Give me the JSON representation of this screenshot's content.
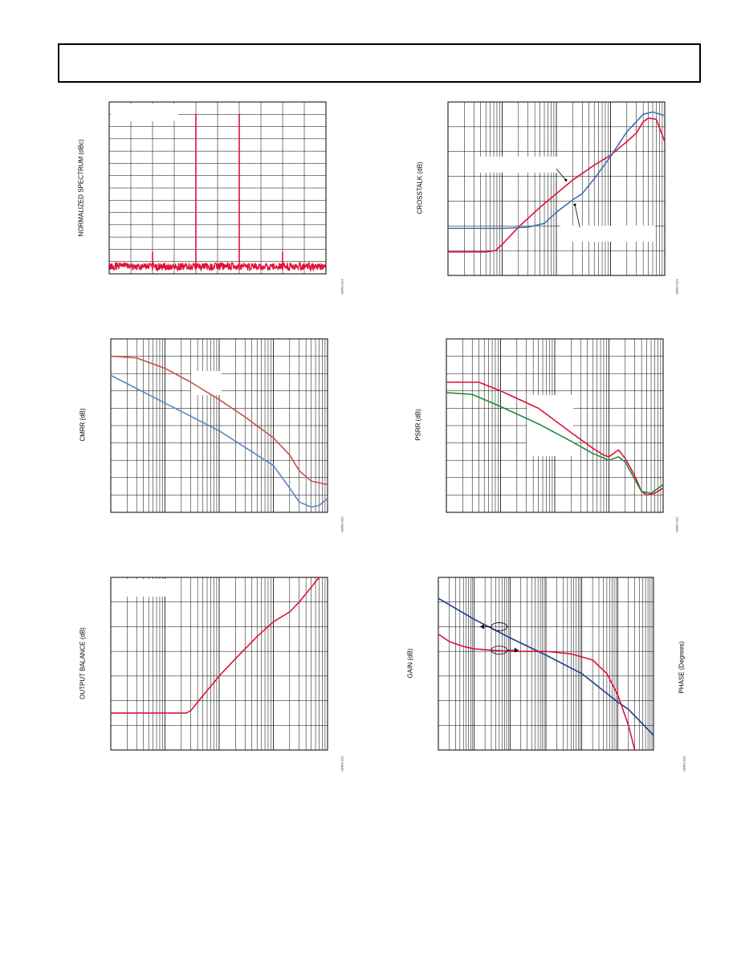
{
  "colors": {
    "red": "#e0103a",
    "blue": "#3f6fb2",
    "navy": "#1b3f8b",
    "green": "#1f8a3a",
    "brick": "#c8504a",
    "steel": "#5b86c4"
  },
  "chart_data": [
    {
      "id": "spectrum",
      "type": "line",
      "ylabel": "NORMALIZED SPECTRUM (dBc)",
      "figure_id": "08452-023",
      "x_scale": "linear",
      "xlim": [
        0,
        10
      ],
      "ylim": [
        -130,
        10
      ],
      "x_gridlines": [
        1,
        2,
        3,
        4,
        5,
        6,
        7,
        8,
        9
      ],
      "y_gridlines": [
        0,
        -10,
        -20,
        -30,
        -40,
        -50,
        -60,
        -70,
        -80,
        -90,
        -100,
        -110,
        -120
      ],
      "noise_floor": [
        -127,
        -121
      ],
      "series": [
        {
          "color": "red",
          "spikes": [
            {
              "x": 2.0,
              "y": -112
            },
            {
              "x": 4.0,
              "y": 0
            },
            {
              "x": 6.0,
              "y": 0
            },
            {
              "x": 8.0,
              "y": -112
            }
          ]
        }
      ],
      "legend_placeholder": "top-left"
    },
    {
      "id": "crosstalk",
      "type": "line",
      "ylabel": "CROSSTALK (dB)",
      "figure_id": "08452-029",
      "x_scale": "log",
      "xlim": [
        0.1,
        1000
      ],
      "ylim": [
        -140,
        0
      ],
      "y_gridlines": [
        -20,
        -40,
        -60,
        -80,
        -100,
        -120
      ],
      "series": [
        {
          "color": "red",
          "points": [
            [
              0.1,
              -121
            ],
            [
              0.5,
              -121
            ],
            [
              0.75,
              -120
            ],
            [
              1,
              -115
            ],
            [
              2,
              -101
            ],
            [
              5,
              -85
            ],
            [
              10,
              -74
            ],
            [
              20,
              -63
            ],
            [
              50,
              -51
            ],
            [
              100,
              -43
            ],
            [
              200,
              -32
            ],
            [
              300,
              -25
            ],
            [
              400,
              -16
            ],
            [
              500,
              -13
            ],
            [
              700,
              -14
            ],
            [
              1000,
              -32
            ]
          ]
        },
        {
          "color": "blue",
          "points": [
            [
              0.1,
              -102
            ],
            [
              1,
              -102
            ],
            [
              3,
              -101
            ],
            [
              6,
              -98
            ],
            [
              10,
              -89
            ],
            [
              20,
              -79
            ],
            [
              30,
              -74
            ],
            [
              50,
              -62
            ],
            [
              100,
              -44
            ],
            [
              200,
              -24
            ],
            [
              400,
              -10
            ],
            [
              600,
              -8
            ],
            [
              1000,
              -11
            ]
          ]
        }
      ],
      "annotations": [
        {
          "label_slot": "upper",
          "arrow_to": [
            15,
            -63
          ]
        },
        {
          "label_slot": "lower",
          "arrow_to": [
            22,
            -83
          ]
        }
      ]
    },
    {
      "id": "cmrr",
      "type": "line",
      "ylabel": "CMRR (dB)",
      "figure_id": "08452-030",
      "x_scale": "log",
      "xlim": [
        0.1,
        1000
      ],
      "ylim": [
        -100,
        0
      ],
      "y_gridlines": [
        -10,
        -20,
        -30,
        -40,
        -50,
        -60,
        -70,
        -80,
        -90
      ],
      "series": [
        {
          "color": "brick",
          "points": [
            [
              0.1,
              -10
            ],
            [
              0.3,
              -11
            ],
            [
              1,
              -17
            ],
            [
              3,
              -25
            ],
            [
              10,
              -35
            ],
            [
              30,
              -45
            ],
            [
              100,
              -57
            ],
            [
              200,
              -67
            ],
            [
              300,
              -76
            ],
            [
              500,
              -82
            ],
            [
              1000,
              -84
            ]
          ]
        },
        {
          "color": "steel",
          "points": [
            [
              0.1,
              -21
            ],
            [
              1,
              -37
            ],
            [
              10,
              -53
            ],
            [
              100,
              -73
            ],
            [
              200,
              -86
            ],
            [
              300,
              -94
            ],
            [
              500,
              -97
            ],
            [
              700,
              -96
            ],
            [
              1000,
              -92
            ]
          ]
        }
      ],
      "legend_placeholder": "upper-center"
    },
    {
      "id": "psrr",
      "type": "line",
      "ylabel": "PSRR (dB)",
      "figure_id": "08452-031",
      "x_scale": "log",
      "xlim": [
        0.1,
        1000
      ],
      "ylim": [
        -100,
        0
      ],
      "y_gridlines": [
        -10,
        -20,
        -30,
        -40,
        -50,
        -60,
        -70,
        -80,
        -90
      ],
      "series": [
        {
          "color": "red",
          "points": [
            [
              0.1,
              -25
            ],
            [
              0.4,
              -25
            ],
            [
              1,
              -30
            ],
            [
              5,
              -40
            ],
            [
              20,
              -54
            ],
            [
              50,
              -63
            ],
            [
              80,
              -67
            ],
            [
              100,
              -68
            ],
            [
              150,
              -64
            ],
            [
              200,
              -69
            ],
            [
              300,
              -79
            ],
            [
              400,
              -88
            ],
            [
              500,
              -90
            ],
            [
              700,
              -89
            ],
            [
              1000,
              -86
            ]
          ]
        },
        {
          "color": "green",
          "points": [
            [
              0.1,
              -31
            ],
            [
              0.3,
              -32
            ],
            [
              1,
              -39
            ],
            [
              5,
              -49
            ],
            [
              20,
              -59
            ],
            [
              50,
              -66
            ],
            [
              100,
              -70
            ],
            [
              150,
              -68
            ],
            [
              200,
              -71
            ],
            [
              300,
              -81
            ],
            [
              400,
              -88
            ],
            [
              600,
              -89
            ],
            [
              1000,
              -84
            ]
          ]
        }
      ],
      "legend_placeholder": "upper-right"
    },
    {
      "id": "output_balance",
      "type": "line",
      "ylabel": "OUTPUT BALANCE (dB)",
      "figure_id": "08452-032",
      "x_scale": "log",
      "xlim": [
        0.1,
        1000
      ],
      "ylim": [
        -70,
        0
      ],
      "y_gridlines": [
        -10,
        -20,
        -30,
        -40,
        -50,
        -60
      ],
      "series": [
        {
          "color": "red",
          "points": [
            [
              0.1,
              -55
            ],
            [
              1,
              -55
            ],
            [
              2.5,
              -55
            ],
            [
              3,
              -54
            ],
            [
              5,
              -48
            ],
            [
              10,
              -40
            ],
            [
              20,
              -33
            ],
            [
              50,
              -24
            ],
            [
              100,
              -18
            ],
            [
              200,
              -14
            ],
            [
              300,
              -10
            ],
            [
              500,
              -4
            ],
            [
              700,
              0
            ]
          ]
        }
      ],
      "legend_placeholder": "top-left"
    },
    {
      "id": "gain_phase",
      "type": "line",
      "ylabel": "GAIN (dB)",
      "y2label": "PHASE (Degrees)",
      "figure_id": "08452-033",
      "x_scale": "log",
      "xlim": [
        0.001,
        1000
      ],
      "ylim": [
        -140,
        0
      ],
      "y_gridlines": [
        -20,
        -40,
        -60,
        -80,
        -100,
        -120
      ],
      "series": [
        {
          "color": "navy",
          "points": [
            [
              0.001,
              -17
            ],
            [
              0.01,
              -34
            ],
            [
              0.1,
              -49
            ],
            [
              1,
              -63
            ],
            [
              10,
              -78
            ],
            [
              100,
              -101
            ],
            [
              200,
              -107
            ],
            [
              1000,
              -128
            ]
          ]
        },
        {
          "color": "red",
          "points": [
            [
              0.001,
              -46
            ],
            [
              0.002,
              -52
            ],
            [
              0.005,
              -56
            ],
            [
              0.01,
              -58
            ],
            [
              0.1,
              -60
            ],
            [
              1,
              -60
            ],
            [
              5,
              -62
            ],
            [
              20,
              -67
            ],
            [
              50,
              -78
            ],
            [
              100,
              -95
            ],
            [
              200,
              -120
            ],
            [
              300,
              -140
            ]
          ]
        }
      ],
      "annotations": [
        {
          "ellipse_at": [
            0.05,
            -40
          ],
          "arrow_dir": "left"
        },
        {
          "ellipse_at": [
            0.05,
            -59
          ],
          "arrow_dir": "right"
        }
      ]
    }
  ]
}
